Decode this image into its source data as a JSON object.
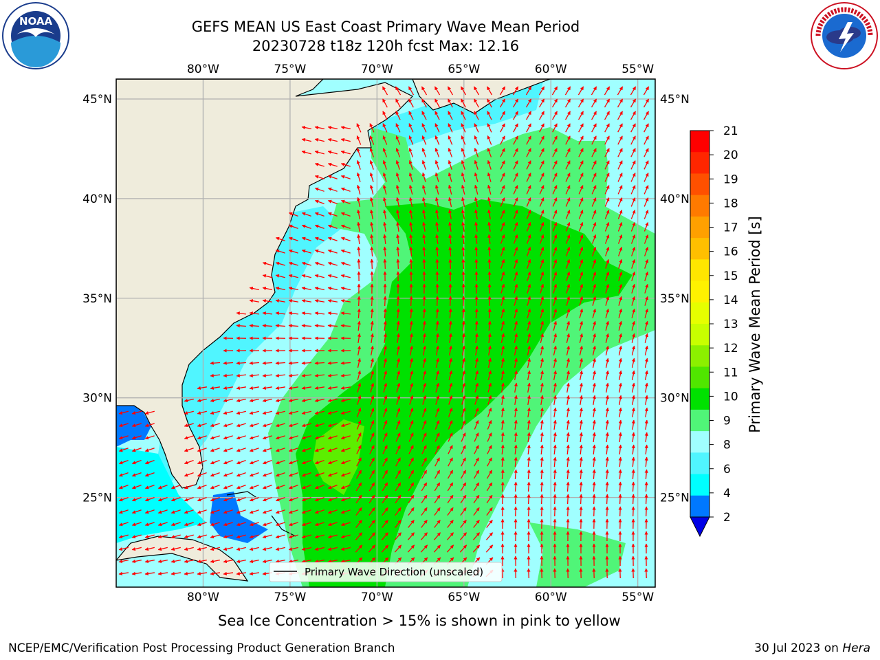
{
  "title": {
    "line1": "GEFS MEAN US East Coast Primary Wave Mean Period",
    "line2": "20230728 t18z 120h fcst   Max: 12.16"
  },
  "logos": {
    "left": {
      "name": "NOAA",
      "text": "NOAA",
      "icon": "noaa-logo"
    },
    "right": {
      "name": "National Weather Service",
      "icon": "nws-logo"
    }
  },
  "map": {
    "lon_ticks": [
      "80°W",
      "75°W",
      "70°W",
      "65°W",
      "60°W",
      "55°W"
    ],
    "lon_values": [
      -80,
      -75,
      -70,
      -65,
      -60,
      -55
    ],
    "lat_ticks": [
      "45°N",
      "40°N",
      "35°N",
      "30°N",
      "25°N"
    ],
    "lat_values": [
      45,
      40,
      35,
      30,
      25
    ],
    "lon_range": [
      -85,
      -54
    ],
    "lat_range": [
      20.5,
      46
    ],
    "land_color": "#efecdc",
    "arrow_color": "#ff0000",
    "grid_color": "#b0b0b0",
    "legend_label": "Primary Wave Direction (unscaled)"
  },
  "colorbar": {
    "label": "Primary Wave Mean Period [s]",
    "ticks": [
      "21",
      "20",
      "19",
      "18",
      "17",
      "16",
      "15",
      "14",
      "13",
      "12",
      "11",
      "10",
      "9",
      "8",
      "6",
      "4",
      "2"
    ],
    "colors": [
      "#ff0000",
      "#ff2600",
      "#ff5000",
      "#ff7a00",
      "#ffa000",
      "#ffbf00",
      "#ffe600",
      "#fff200",
      "#e6ff00",
      "#c8ff00",
      "#8cf000",
      "#50e600",
      "#00e100",
      "#50f578",
      "#a0ffff",
      "#50f5ff",
      "#00ffff",
      "#0078ff"
    ],
    "under_color": "#0000e6"
  },
  "notes": {
    "sea_ice": "Sea Ice Concentration > 15% is shown in pink to yellow"
  },
  "footer": {
    "left": "NCEP/EMC/Verification Post Processing Product Generation Branch",
    "right_date": "30 Jul 2023 on ",
    "right_host": "Hera"
  }
}
